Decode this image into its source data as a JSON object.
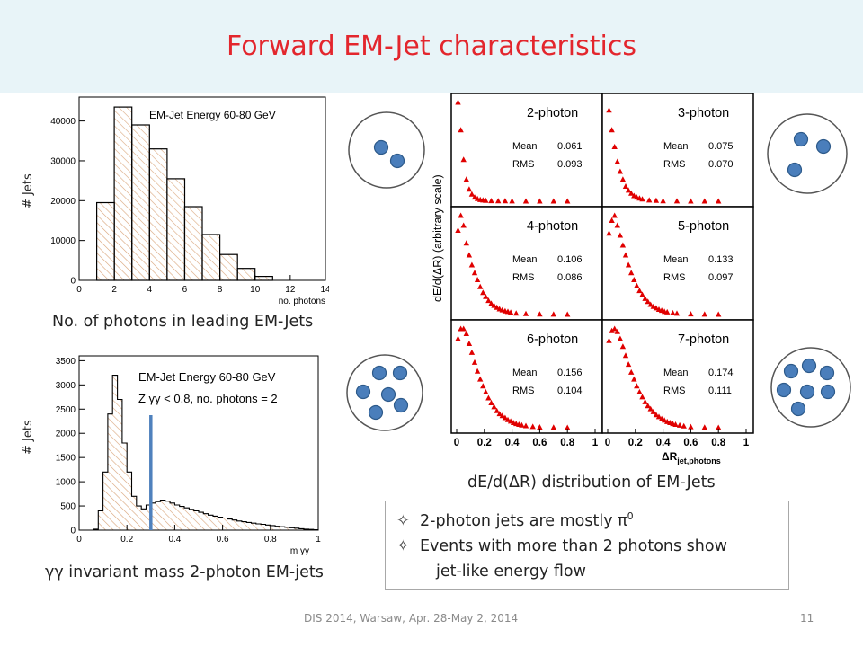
{
  "slide": {
    "title": "Forward EM-Jet characteristics",
    "footer_text": "DIS 2014, Warsaw, Apr. 28-May 2, 2014",
    "page_number": "11",
    "title_color": "#e3262d",
    "band_color": "#e8f4f8"
  },
  "captions": {
    "photons": "No. of photons in leading EM-Jets",
    "mass": "γγ invariant mass 2-photon EM-jets",
    "dr": "dE/d(ΔR) distribution of  EM-Jets"
  },
  "bullets": {
    "b1_text": "2-photon jets are mostly π",
    "b1_sup": "0",
    "b2_line1": "Events with more than 2 photons show",
    "b2_line2": "jet-like  energy flow",
    "star_icon": "✧"
  },
  "chart_data": [
    {
      "type": "bar",
      "title": "EM-Jet Energy 60-80 GeV",
      "xlabel": "no. photons",
      "ylabel": "# Jets",
      "xlim": [
        0,
        14
      ],
      "ylim": [
        0,
        46000
      ],
      "x_ticks": [
        0,
        2,
        4,
        6,
        8,
        10,
        12,
        14
      ],
      "y_ticks": [
        0,
        10000,
        20000,
        30000,
        40000
      ],
      "bin_edges": [
        0,
        1,
        2,
        3,
        4,
        5,
        6,
        7,
        8,
        9,
        10,
        11,
        12,
        13,
        14
      ],
      "values": [
        0,
        19500,
        43500,
        39000,
        33000,
        25500,
        18500,
        11500,
        6500,
        3000,
        1000,
        0,
        0,
        0
      ]
    },
    {
      "type": "area",
      "title": "EM-Jet Energy 60-80 GeV",
      "subtitle": "Z γγ < 0.8, no. photons = 2",
      "xlabel": "m γγ",
      "ylabel": "# Jets",
      "xlim": [
        0,
        1
      ],
      "ylim": [
        0,
        3600
      ],
      "x_ticks": [
        0,
        0.2,
        0.4,
        0.6,
        0.8,
        1
      ],
      "y_ticks": [
        0,
        500,
        1000,
        1500,
        2000,
        2500,
        3000,
        3500
      ],
      "marker_x": 0.3,
      "bin_width": 0.02,
      "values": [
        0,
        0,
        0,
        20,
        400,
        1200,
        2400,
        3200,
        2700,
        1800,
        1200,
        700,
        500,
        440,
        520,
        560,
        590,
        620,
        600,
        560,
        520,
        490,
        460,
        430,
        400,
        370,
        340,
        310,
        290,
        270,
        250,
        230,
        210,
        190,
        175,
        160,
        145,
        130,
        120,
        105,
        95,
        80,
        70,
        60,
        50,
        40,
        30,
        20,
        15,
        10
      ]
    },
    {
      "type": "scatter",
      "title": "dE/d(ΔR) distribution of EM-Jets",
      "ylabel": "dE/d(ΔR)  (arbitrary scale)",
      "xlabel": "ΔR jet,photons",
      "xlim": [
        0,
        1
      ],
      "x_ticks": [
        0,
        0.2,
        0.4,
        0.6,
        0.8,
        1
      ],
      "panels": [
        {
          "name": "2-photon",
          "mean": "0.061",
          "rms": "0.093",
          "x": [
            0.01,
            0.03,
            0.05,
            0.07,
            0.09,
            0.11,
            0.13,
            0.15,
            0.17,
            0.19,
            0.21,
            0.25,
            0.3,
            0.35,
            0.4,
            0.5,
            0.6,
            0.7,
            0.8
          ],
          "y": [
            1.0,
            0.72,
            0.42,
            0.22,
            0.12,
            0.07,
            0.04,
            0.025,
            0.015,
            0.01,
            0.006,
            0.004,
            0.003,
            0.002,
            0.001,
            0,
            0,
            0,
            0
          ]
        },
        {
          "name": "3-photon",
          "mean": "0.075",
          "rms": "0.070",
          "x": [
            0.01,
            0.03,
            0.05,
            0.07,
            0.09,
            0.11,
            0.13,
            0.15,
            0.17,
            0.19,
            0.21,
            0.23,
            0.25,
            0.3,
            0.35,
            0.4,
            0.5,
            0.6,
            0.7,
            0.8
          ],
          "y": [
            0.92,
            0.72,
            0.55,
            0.4,
            0.3,
            0.22,
            0.15,
            0.11,
            0.08,
            0.055,
            0.04,
            0.03,
            0.02,
            0.01,
            0.006,
            0.003,
            0.001,
            0,
            0,
            0
          ]
        },
        {
          "name": "4-photon",
          "mean": "0.106",
          "rms": "0.086",
          "x": [
            0.01,
            0.03,
            0.05,
            0.07,
            0.09,
            0.11,
            0.13,
            0.15,
            0.17,
            0.19,
            0.21,
            0.23,
            0.25,
            0.27,
            0.29,
            0.31,
            0.33,
            0.35,
            0.37,
            0.39,
            0.43,
            0.5,
            0.6,
            0.7,
            0.8
          ],
          "y": [
            0.85,
            1.0,
            0.9,
            0.72,
            0.6,
            0.5,
            0.42,
            0.35,
            0.28,
            0.22,
            0.18,
            0.14,
            0.11,
            0.09,
            0.07,
            0.055,
            0.045,
            0.035,
            0.028,
            0.02,
            0.012,
            0.006,
            0.003,
            0.001,
            0
          ]
        },
        {
          "name": "5-photon",
          "mean": "0.133",
          "rms": "0.097",
          "x": [
            0.01,
            0.03,
            0.05,
            0.07,
            0.09,
            0.11,
            0.13,
            0.15,
            0.17,
            0.19,
            0.21,
            0.23,
            0.25,
            0.27,
            0.29,
            0.31,
            0.33,
            0.35,
            0.37,
            0.39,
            0.41,
            0.43,
            0.47,
            0.5,
            0.6,
            0.7,
            0.8
          ],
          "y": [
            0.82,
            0.95,
            1.0,
            0.9,
            0.8,
            0.7,
            0.6,
            0.5,
            0.42,
            0.35,
            0.29,
            0.24,
            0.2,
            0.16,
            0.13,
            0.1,
            0.08,
            0.065,
            0.05,
            0.04,
            0.03,
            0.024,
            0.015,
            0.01,
            0.004,
            0.001,
            0
          ]
        },
        {
          "name": "6-photon",
          "mean": "0.156",
          "rms": "0.104",
          "x": [
            0.01,
            0.03,
            0.05,
            0.07,
            0.09,
            0.11,
            0.13,
            0.15,
            0.17,
            0.19,
            0.21,
            0.23,
            0.25,
            0.27,
            0.29,
            0.31,
            0.33,
            0.35,
            0.37,
            0.39,
            0.41,
            0.43,
            0.45,
            0.47,
            0.5,
            0.55,
            0.6,
            0.7,
            0.8
          ],
          "y": [
            0.9,
            1.0,
            1.0,
            0.95,
            0.85,
            0.76,
            0.66,
            0.57,
            0.49,
            0.42,
            0.36,
            0.3,
            0.25,
            0.21,
            0.17,
            0.14,
            0.12,
            0.1,
            0.08,
            0.065,
            0.05,
            0.04,
            0.032,
            0.025,
            0.018,
            0.01,
            0.005,
            0.002,
            0
          ]
        },
        {
          "name": "7-photon",
          "mean": "0.174",
          "rms": "0.111",
          "x": [
            0.01,
            0.03,
            0.05,
            0.07,
            0.09,
            0.11,
            0.13,
            0.15,
            0.17,
            0.19,
            0.21,
            0.23,
            0.25,
            0.27,
            0.29,
            0.31,
            0.33,
            0.35,
            0.37,
            0.39,
            0.41,
            0.43,
            0.45,
            0.47,
            0.49,
            0.52,
            0.55,
            0.6,
            0.7,
            0.8
          ],
          "y": [
            0.88,
            0.98,
            1.0,
            0.97,
            0.9,
            0.82,
            0.73,
            0.64,
            0.56,
            0.49,
            0.42,
            0.36,
            0.31,
            0.26,
            0.22,
            0.19,
            0.16,
            0.13,
            0.11,
            0.09,
            0.075,
            0.06,
            0.05,
            0.04,
            0.032,
            0.024,
            0.016,
            0.008,
            0.002,
            0
          ]
        }
      ]
    }
  ],
  "diagrams": {
    "circle1_dots": 2,
    "circle2_dots": 3,
    "circle3_dots": 6,
    "circle4_dots": 7,
    "dot_color": "#4a7ebb"
  }
}
